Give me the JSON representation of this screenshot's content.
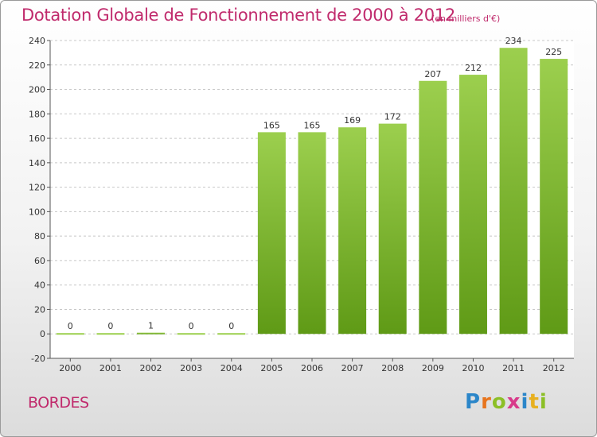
{
  "title": "Dotation Globale de Fonctionnement de 2000 à 2012",
  "subtitle": "(en milliers d'€)",
  "commune": "BORDES",
  "brand": {
    "letters": [
      "P",
      "r",
      "o",
      "x",
      "i",
      "t",
      "i"
    ],
    "colors": [
      "#2b86c9",
      "#e7741c",
      "#8cbf26",
      "#d83a8a",
      "#2b86c9",
      "#e7b020",
      "#8cbf26"
    ]
  },
  "colors": {
    "bar_light": "#9ccf4e",
    "bar_dark": "#5f9a16",
    "title": "#c02a6c",
    "grid": "#c8c8c8"
  },
  "chart_data": {
    "type": "bar",
    "title": "Dotation Globale de Fonctionnement de 2000 à 2012",
    "subtitle": "(en milliers d'€)",
    "categories": [
      "2000",
      "2001",
      "2002",
      "2003",
      "2004",
      "2005",
      "2006",
      "2007",
      "2008",
      "2009",
      "2010",
      "2011",
      "2012"
    ],
    "values": [
      0,
      0,
      1,
      0,
      0,
      165,
      165,
      169,
      172,
      207,
      212,
      234,
      225
    ],
    "ylim": [
      -20,
      240
    ],
    "yticks": [
      -20,
      0,
      20,
      40,
      60,
      80,
      100,
      120,
      140,
      160,
      180,
      200,
      220,
      240
    ],
    "grid": "horizontal dashed",
    "data_labels": true
  }
}
